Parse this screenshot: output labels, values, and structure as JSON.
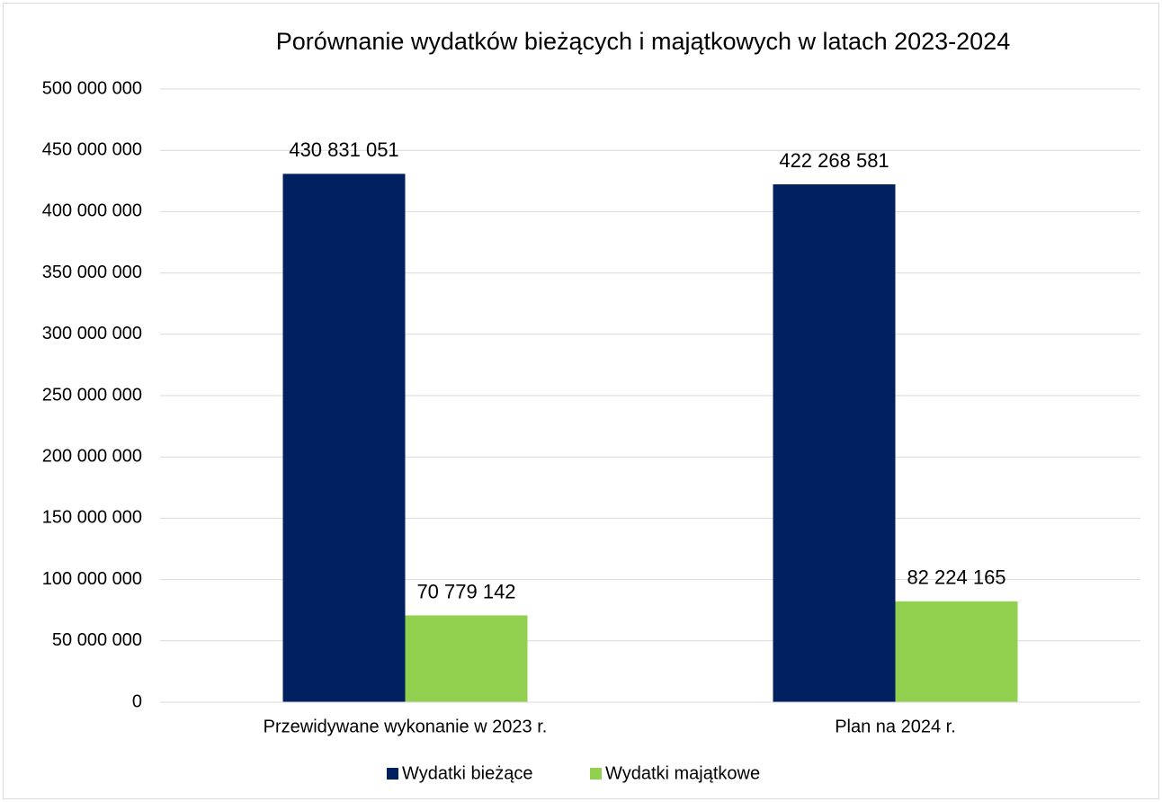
{
  "chart_data": {
    "type": "bar",
    "title": "Porównanie wydatków bieżących i majątkowych w latach 2023-2024",
    "categories": [
      "Przewidywane wykonanie w 2023 r.",
      "Plan na 2024 r."
    ],
    "series": [
      {
        "name": "Wydatki bieżące",
        "color": "#002060",
        "values": [
          430831051,
          422268581
        ],
        "value_labels": [
          "430 831 051",
          "422 268 581"
        ]
      },
      {
        "name": "Wydatki majątkowe",
        "color": "#92d050",
        "values": [
          70779142,
          82224165
        ],
        "value_labels": [
          "70 779 142",
          "82 224 165"
        ]
      }
    ],
    "ylim": [
      0,
      500000000
    ],
    "yticks": [
      0,
      {
        "value": 50000000,
        "label": "50 000 000"
      },
      {
        "value": 100000000,
        "label": "100 000 000"
      },
      {
        "value": 150000000,
        "label": "150 000 000"
      },
      {
        "value": 200000000,
        "label": "200 000 000"
      },
      {
        "value": 250000000,
        "label": "250 000 000"
      },
      {
        "value": 300000000,
        "label": "300 000 000"
      },
      {
        "value": 350000000,
        "label": "350 000 000"
      },
      {
        "value": 400000000,
        "label": "400 000 000"
      },
      {
        "value": 450000000,
        "label": "450 000 000"
      },
      {
        "value": 500000000,
        "label": "500 000 000"
      }
    ],
    "grid": true,
    "legend": "bottom"
  }
}
